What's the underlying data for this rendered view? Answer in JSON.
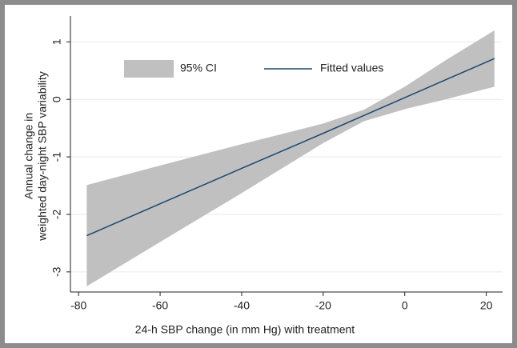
{
  "chart_data": {
    "type": "line",
    "xlabel": "24-h SBP change (in mm Hg) with treatment",
    "ylabel": [
      "Annual change in",
      "weighted day-night SBP variability"
    ],
    "x": [
      -78,
      -60,
      -40,
      -20,
      -10,
      0,
      10,
      22
    ],
    "series": [
      {
        "name": "95% CI",
        "color": "#c0c0c0",
        "lower": [
          -3.25,
          -2.48,
          -1.63,
          -0.76,
          -0.38,
          -0.17,
          0.0,
          0.22
        ],
        "upper": [
          -1.49,
          -1.15,
          -0.78,
          -0.42,
          -0.18,
          0.22,
          0.68,
          1.2
        ]
      },
      {
        "name": "Fitted values",
        "color": "#1a476f",
        "values": [
          -2.37,
          -1.815,
          -1.2,
          -0.59,
          -0.28,
          0.03,
          0.34,
          0.71
        ]
      }
    ],
    "xlim": [
      -82,
      24
    ],
    "xticks": [
      -80,
      -60,
      -40,
      -20,
      0,
      20
    ],
    "ylim": [
      -3.35,
      1.45
    ],
    "yticks": [
      -3,
      -2,
      -1,
      0,
      1
    ],
    "grid": true
  }
}
